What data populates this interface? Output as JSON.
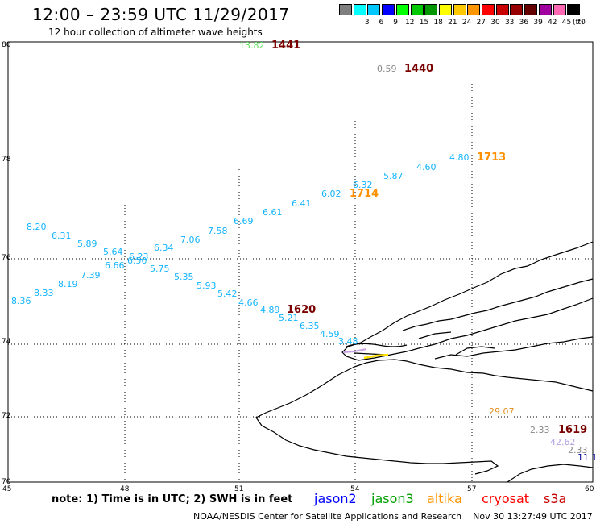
{
  "header": {
    "title": "12:00  – 23:59 UTC 11/29/2017",
    "subtitle": "12 hour collection of altimeter wave heights"
  },
  "legend": {
    "unit": "(ft)",
    "items": [
      {
        "label": "",
        "color": "#7f7f7f"
      },
      {
        "label": "3",
        "color": "#00ffff"
      },
      {
        "label": "6",
        "color": "#00c8ff"
      },
      {
        "label": "9",
        "color": "#0000ff"
      },
      {
        "label": "12",
        "color": "#00ff00"
      },
      {
        "label": "15",
        "color": "#00c800"
      },
      {
        "label": "18",
        "color": "#009600"
      },
      {
        "label": "21",
        "color": "#ffff00"
      },
      {
        "label": "24",
        "color": "#ffc800"
      },
      {
        "label": "27",
        "color": "#ff9600"
      },
      {
        "label": "30",
        "color": "#ff0000"
      },
      {
        "label": "33",
        "color": "#c80000"
      },
      {
        "label": "36",
        "color": "#960000"
      },
      {
        "label": "39",
        "color": "#640000"
      },
      {
        "label": "42",
        "color": "#a000a0"
      },
      {
        "label": "45",
        "color": "#ff69b4"
      },
      {
        "label": "70",
        "color": "#000000"
      }
    ]
  },
  "axes": {
    "lat_labels": [
      "80",
      "78",
      "76",
      "74",
      "72",
      "70"
    ],
    "lon_labels": [
      "45",
      "48",
      "51",
      "54",
      "57",
      "60"
    ]
  },
  "observations": [
    {
      "text": "13.82",
      "color": "#66e066"
    },
    {
      "text": "1441",
      "color": "#7a0000",
      "bold": true
    },
    {
      "text": "0.59",
      "color": "#888888"
    },
    {
      "text": "1440",
      "color": "#7a0000",
      "bold": true
    },
    {
      "text": "4.80",
      "color": "#14b4ff"
    },
    {
      "text": "1713",
      "color": "#ff9000",
      "bold": true
    },
    {
      "text": "4.60",
      "color": "#14b4ff"
    },
    {
      "text": "5.87",
      "color": "#14b4ff"
    },
    {
      "text": "6.32",
      "color": "#14b4ff"
    },
    {
      "text": "6.02",
      "color": "#14b4ff"
    },
    {
      "text": "1714",
      "color": "#ff9000",
      "bold": true
    },
    {
      "text": "6.41",
      "color": "#14b4ff"
    },
    {
      "text": "6.61",
      "color": "#14b4ff"
    },
    {
      "text": "6.69",
      "color": "#14b4ff"
    },
    {
      "text": "7.58",
      "color": "#14b4ff"
    },
    {
      "text": "7.06",
      "color": "#14b4ff"
    },
    {
      "text": "6.34",
      "color": "#14b4ff"
    },
    {
      "text": "6.23",
      "color": "#14b4ff"
    },
    {
      "text": "6.50",
      "color": "#14b4ff"
    },
    {
      "text": "8.20",
      "color": "#14b4ff"
    },
    {
      "text": "6.31",
      "color": "#14b4ff"
    },
    {
      "text": "5.89",
      "color": "#14b4ff"
    },
    {
      "text": "5.64",
      "color": "#14b4ff"
    },
    {
      "text": "6.66",
      "color": "#14b4ff"
    },
    {
      "text": "7.39",
      "color": "#14b4ff"
    },
    {
      "text": "8.19",
      "color": "#14b4ff"
    },
    {
      "text": "8.33",
      "color": "#14b4ff"
    },
    {
      "text": "8.36",
      "color": "#14b4ff"
    },
    {
      "text": "5.75",
      "color": "#14b4ff"
    },
    {
      "text": "5.35",
      "color": "#14b4ff"
    },
    {
      "text": "5.93",
      "color": "#14b4ff"
    },
    {
      "text": "5.42",
      "color": "#14b4ff"
    },
    {
      "text": "4.66",
      "color": "#14b4ff"
    },
    {
      "text": "4.89",
      "color": "#14b4ff"
    },
    {
      "text": "1620",
      "color": "#7a0000",
      "bold": true
    },
    {
      "text": "5.21",
      "color": "#14b4ff"
    },
    {
      "text": "6.35",
      "color": "#14b4ff"
    },
    {
      "text": "4.59",
      "color": "#14b4ff"
    },
    {
      "text": "3.48",
      "color": "#14b4ff"
    },
    {
      "text": "29.07",
      "color": "#e09020"
    },
    {
      "text": "2.33",
      "color": "#888888"
    },
    {
      "text": "1619",
      "color": "#7a0000",
      "bold": true
    },
    {
      "text": "42.62",
      "color": "#b0a0e0"
    },
    {
      "text": "2.33",
      "color": "#888888"
    },
    {
      "text": "11.1",
      "color": "#0000a0"
    }
  ],
  "footer": {
    "note": "note:  1) Time is in UTC;  2) SWH is in feet",
    "satellites": [
      {
        "name": "jason2",
        "color": "#0000ff"
      },
      {
        "name": "jason3",
        "color": "#00a000"
      },
      {
        "name": "altika",
        "color": "#ff9600"
      },
      {
        "name": "cryosat",
        "color": "#ff0000"
      },
      {
        "name": "s3a",
        "color": "#c80000"
      }
    ],
    "credit": "NOAA/NESDIS Center for Satellite Applications and Research",
    "timestamp": "Nov 30 13:27:49 UTC 2017"
  }
}
